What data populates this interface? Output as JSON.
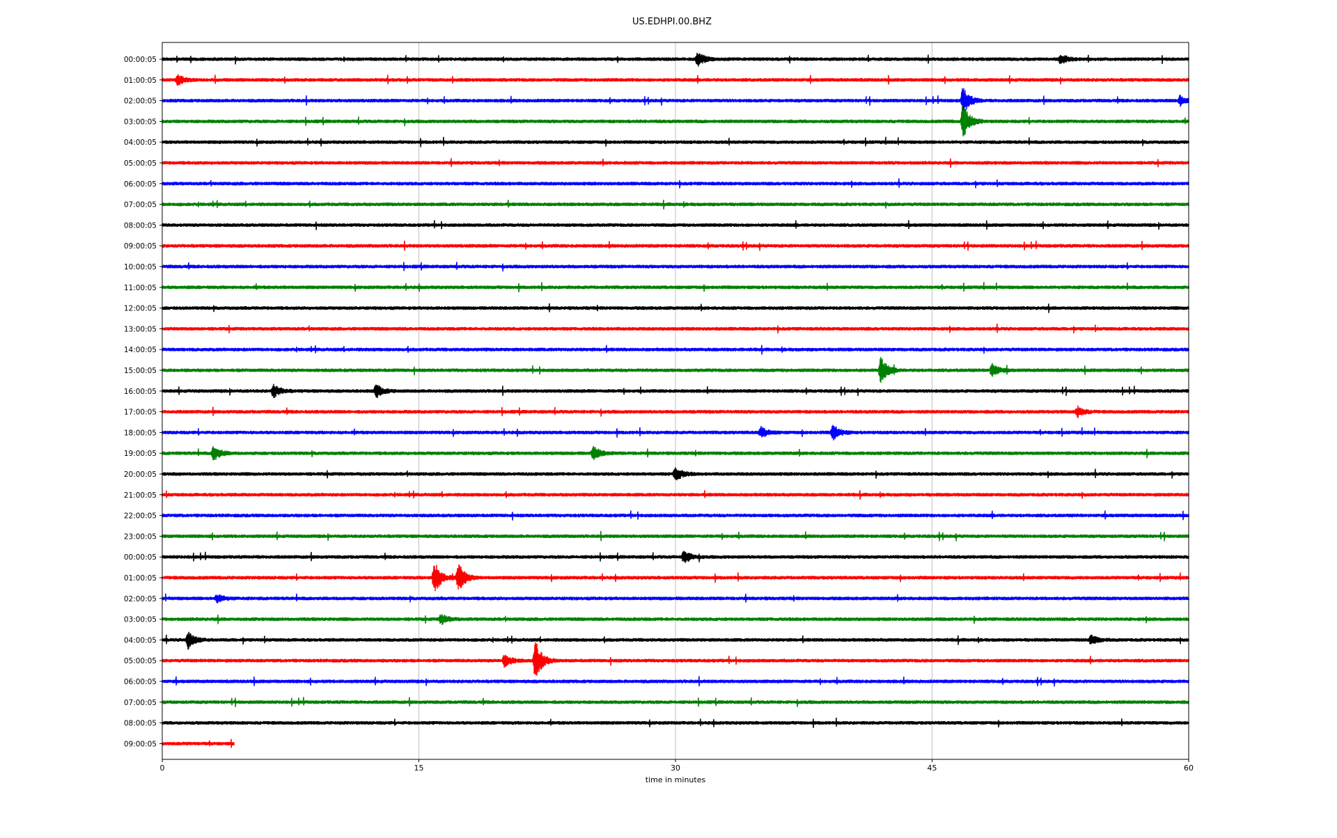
{
  "chart_data": {
    "type": "line",
    "title": "US.EDHPI.00.BHZ",
    "xlabel": "time in minutes",
    "ylabel": "",
    "xlim": [
      0,
      60
    ],
    "xticks": [
      "0",
      "15",
      "30",
      "45",
      "60"
    ],
    "grid": "vertical",
    "row_labels": [
      "00:00:05",
      "01:00:05",
      "02:00:05",
      "03:00:05",
      "04:00:05",
      "05:00:05",
      "06:00:05",
      "07:00:05",
      "08:00:05",
      "09:00:05",
      "10:00:05",
      "11:00:05",
      "12:00:05",
      "13:00:05",
      "14:00:05",
      "15:00:05",
      "16:00:05",
      "17:00:05",
      "18:00:05",
      "19:00:05",
      "20:00:05",
      "21:00:05",
      "22:00:05",
      "23:00:05",
      "00:00:05",
      "01:00:05",
      "02:00:05",
      "03:00:05",
      "04:00:05",
      "05:00:05",
      "06:00:05",
      "07:00:05",
      "08:00:05",
      "09:00:05"
    ],
    "colors": [
      "#000000",
      "#ff0000",
      "#0000ff",
      "#008000"
    ],
    "last_row_end_minute": 4.2,
    "events": [
      {
        "row": 0,
        "minute": 31.3,
        "amp": 0.8
      },
      {
        "row": 0,
        "minute": 52.5,
        "amp": 0.6
      },
      {
        "row": 1,
        "minute": 0.9,
        "amp": 0.6
      },
      {
        "row": 2,
        "minute": 46.8,
        "amp": 1.6
      },
      {
        "row": 2,
        "minute": 59.5,
        "amp": 0.6
      },
      {
        "row": 3,
        "minute": 46.8,
        "amp": 2.2
      },
      {
        "row": 15,
        "minute": 42.0,
        "amp": 1.6
      },
      {
        "row": 15,
        "minute": 48.5,
        "amp": 0.8
      },
      {
        "row": 16,
        "minute": 6.5,
        "amp": 0.8
      },
      {
        "row": 16,
        "minute": 12.5,
        "amp": 0.8
      },
      {
        "row": 17,
        "minute": 53.5,
        "amp": 0.6
      },
      {
        "row": 18,
        "minute": 35.0,
        "amp": 0.6
      },
      {
        "row": 18,
        "minute": 39.2,
        "amp": 0.9
      },
      {
        "row": 19,
        "minute": 3.0,
        "amp": 0.9
      },
      {
        "row": 19,
        "minute": 25.2,
        "amp": 0.8
      },
      {
        "row": 20,
        "minute": 30.0,
        "amp": 0.9
      },
      {
        "row": 24,
        "minute": 30.5,
        "amp": 0.8
      },
      {
        "row": 25,
        "minute": 15.9,
        "amp": 2.0
      },
      {
        "row": 25,
        "minute": 17.3,
        "amp": 1.8
      },
      {
        "row": 26,
        "minute": 3.2,
        "amp": 0.5
      },
      {
        "row": 27,
        "minute": 16.3,
        "amp": 0.6
      },
      {
        "row": 28,
        "minute": 1.5,
        "amp": 1.0
      },
      {
        "row": 28,
        "minute": 54.3,
        "amp": 0.6
      },
      {
        "row": 29,
        "minute": 21.8,
        "amp": 2.5
      },
      {
        "row": 29,
        "minute": 20.0,
        "amp": 0.8
      }
    ]
  }
}
